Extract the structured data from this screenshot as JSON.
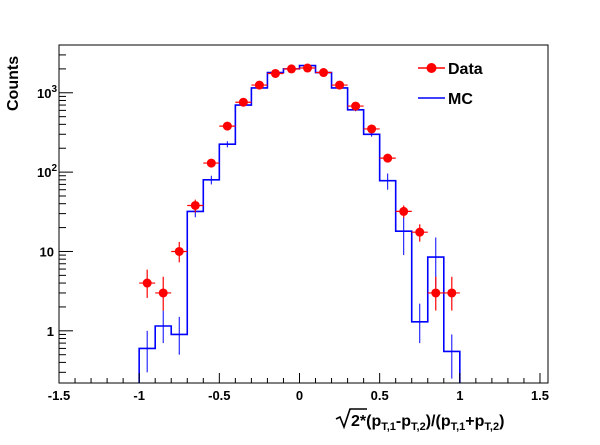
{
  "chart_data": {
    "type": "scatter",
    "xlabel": "√2*(p_T,1-p_T,2)/(p_T,1+p_T,2)",
    "xlabel_parts": {
      "sqrt": "√",
      "two": "2*",
      "lp1": "(p",
      "s1": "T,1",
      "minus": "-p",
      "s2": "T,2",
      "mid": ")/(p",
      "s3": "T,1",
      "plus": "+p",
      "s4": "T,2",
      "rp": ")"
    },
    "ylabel": "Counts",
    "xlim": [
      -1.5,
      1.55
    ],
    "ylim": [
      0.22,
      4000
    ],
    "yscale": "log",
    "x_ticks": [
      "-1.5",
      "-1",
      "-0.5",
      "0",
      "0.5",
      "1",
      "1.5"
    ],
    "y_ticks": [
      {
        "value": 1,
        "base": "1",
        "exp": ""
      },
      {
        "value": 10,
        "base": "10",
        "exp": ""
      },
      {
        "value": 100,
        "base": "10",
        "exp": "2"
      },
      {
        "value": 1000,
        "base": "10",
        "exp": "3"
      }
    ],
    "legend": {
      "placement": "top-right",
      "entries": [
        "Data",
        "MC"
      ]
    },
    "colors": {
      "data": "#ff0000",
      "mc": "#0000ff"
    },
    "series": [
      {
        "name": "Data",
        "style": "points-with-errors",
        "x": [
          -0.95,
          -0.85,
          -0.75,
          -0.65,
          -0.55,
          -0.45,
          -0.35,
          -0.25,
          -0.15,
          -0.05,
          0.05,
          0.15,
          0.25,
          0.35,
          0.45,
          0.55,
          0.65,
          0.75,
          0.85,
          0.95
        ],
        "y": [
          4,
          3,
          10,
          38,
          130,
          380,
          760,
          1250,
          1750,
          2000,
          2050,
          1800,
          1250,
          680,
          350,
          150,
          32,
          17.5,
          3,
          3
        ],
        "y_low": [
          2.6,
          1.8,
          7.3,
          31,
          118,
          355,
          725,
          1215,
          1710,
          1955,
          2005,
          1760,
          1215,
          654,
          332,
          138,
          26.5,
          13.3,
          1.8,
          1.8
        ],
        "y_high": [
          5.9,
          4.8,
          13.2,
          45,
          142,
          405,
          795,
          1285,
          1790,
          2045,
          2095,
          1840,
          1285,
          706,
          368,
          162,
          38,
          22,
          4.8,
          4.8
        ],
        "x_err": 0.05
      },
      {
        "name": "MC",
        "style": "step-histogram",
        "bin_edges": [
          -1.0,
          -0.9,
          -0.8,
          -0.7,
          -0.6,
          -0.5,
          -0.4,
          -0.3,
          -0.2,
          -0.1,
          0.0,
          0.1,
          0.2,
          0.3,
          0.4,
          0.5,
          0.6,
          0.7,
          0.8,
          0.9,
          1.0
        ],
        "values": [
          0.6,
          1.15,
          0.9,
          32,
          80,
          225,
          700,
          1150,
          1800,
          2000,
          2200,
          1800,
          1150,
          610,
          300,
          78,
          18,
          1.3,
          8.5,
          0.55
        ],
        "err_low": [
          0.3,
          0.7,
          0.5,
          27,
          70,
          205,
          670,
          1115,
          1760,
          1955,
          2150,
          1760,
          1115,
          585,
          280,
          60,
          9,
          0.7,
          3.5,
          0.25
        ],
        "err_high": [
          1.0,
          1.8,
          1.5,
          37,
          90,
          245,
          730,
          1185,
          1840,
          2045,
          2250,
          1840,
          1185,
          635,
          320,
          96,
          27,
          2.2,
          15,
          0.9
        ]
      }
    ]
  }
}
